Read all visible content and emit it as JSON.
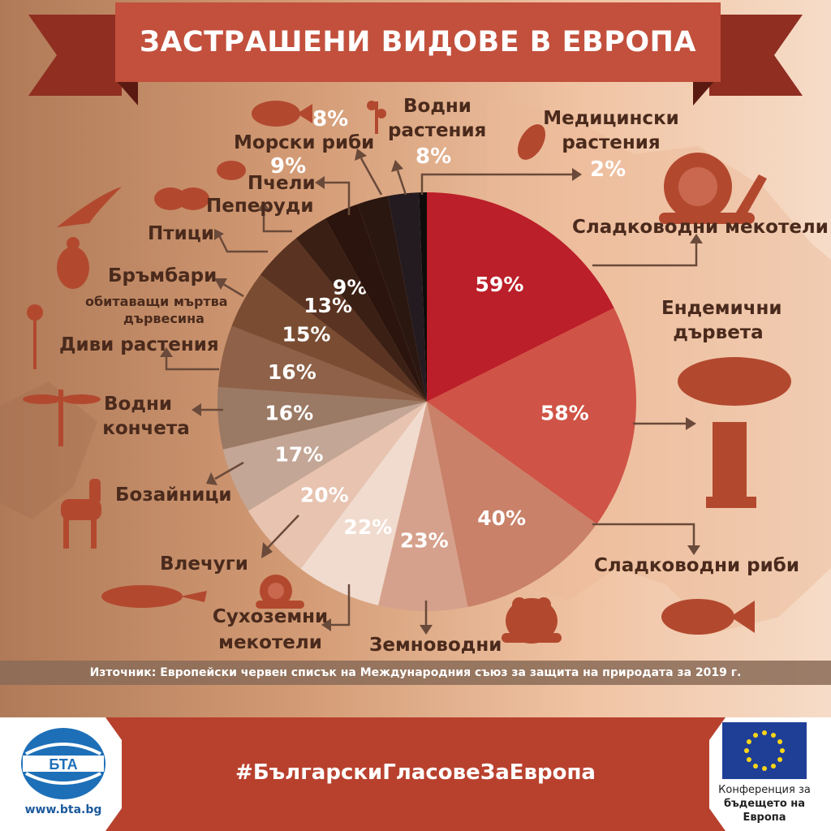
{
  "title": "ЗАСТРАШЕНИ ВИДОВЕ В ЕВРОПА",
  "source": "Източник: Европейски червен списък на Международния съюз за защита на природата за 2019 г.",
  "hashtag": "#БългарскиГласовеЗаЕвропа",
  "bta_url": "www.bta.bg",
  "bta_logo_text": "БТА",
  "eu_caption": [
    "Конференция за",
    "бъдещето на",
    "Европа"
  ],
  "colors": {
    "banner": "#c2503c",
    "footer_band": "#b8412e",
    "eu_blue": "#1f3f96",
    "eu_star": "#ffd617"
  },
  "labels": {
    "freshwater_molluscs": "Сладководни мекотели",
    "endemic_trees_1": "Ендемични",
    "endemic_trees_2": "дървета",
    "freshwater_fish": "Сладководни риби",
    "amphibians": "Земноводни",
    "land_molluscs_1": "Сухоземни",
    "land_molluscs_2": "мекотели",
    "reptiles": "Влечуги",
    "mammals": "Бозайници",
    "dragonflies_1": "Водни",
    "dragonflies_2": "кончета",
    "wild_plants": "Диви растения",
    "beetles_1": "Бръмбари",
    "beetles_2": "обитаващи мъртва",
    "beetles_3": "дървесина",
    "birds": "Птици",
    "butterflies": "Пеперуди",
    "bees": "Пчели",
    "marine_fish": "Морски риби",
    "aquatic_plants_1": "Водни",
    "aquatic_plants_2": "растения",
    "medicinal_plants_1": "Медицински",
    "medicinal_plants_2": "растения"
  },
  "side_pcts": {
    "marine_fish": "8%",
    "bees": "9%",
    "aquatic_plants": "8%",
    "medicinal_plants": "2%"
  },
  "chart_data": {
    "type": "pie",
    "title": "ЗАСТРАШЕНИ ВИДОВЕ В ЕВРОПА",
    "categories": [
      "Сладководни мекотели",
      "Ендемични дървета",
      "Сладководни риби",
      "Земноводни",
      "Сухоземни мекотели",
      "Влечуги",
      "Бозайници",
      "Водни кончета",
      "Диви растения",
      "Бръмбари обитаващи мъртва дървесина",
      "Птици",
      "Пеперуди",
      "Пчели",
      "Морски риби",
      "Водни растения",
      "Медицински растения"
    ],
    "values": [
      59,
      58,
      40,
      23,
      22,
      20,
      17,
      16,
      16,
      15,
      13,
      9,
      9,
      8,
      8,
      2
    ],
    "value_labels": [
      "59%",
      "58%",
      "40%",
      "23%",
      "22%",
      "20%",
      "17%",
      "16%",
      "16%",
      "15%",
      "13%",
      "9%",
      "",
      "",
      "",
      ""
    ],
    "colors": [
      "#bb1f29",
      "#cf5346",
      "#c98169",
      "#d6a18c",
      "#f1dbcf",
      "#e7c3b0",
      "#c3a695",
      "#9a7965",
      "#8e6148",
      "#7a4d33",
      "#5a3322",
      "#3a1f14",
      "#2b140d",
      "#2a1710",
      "#241b20",
      "#0e0b0b"
    ],
    "unit": "%"
  }
}
